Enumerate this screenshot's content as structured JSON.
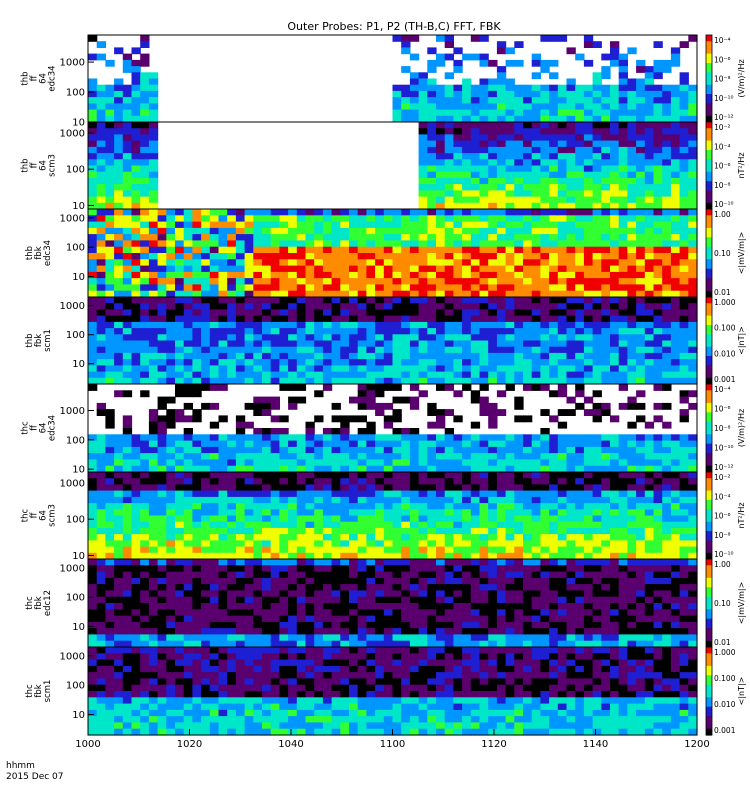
{
  "title": "Outer Probes: P1, P2 (TH-B,C) FFT, FBK",
  "time_axis": {
    "unit_label": "hhmm",
    "date_label": "2015 Dec 07",
    "ticks": [
      "1000",
      "1020",
      "1040",
      "1100",
      "1120",
      "1140",
      "1200"
    ]
  },
  "colors": {
    "colormap": [
      "#000000",
      "#5a006e",
      "#1e1ed2",
      "#0096ff",
      "#00e6c8",
      "#32ff32",
      "#f0ff00",
      "#ff8c00",
      "#f00000"
    ]
  },
  "chart_data": [
    {
      "type": "heatmap",
      "ylabel": [
        "thb",
        "ff",
        "64",
        "edc34"
      ],
      "y_ticks": [
        "10",
        "100",
        "1000"
      ],
      "y_range_hz": [
        10,
        8000
      ],
      "y_scale": "log",
      "colorbar": {
        "ticks": [
          "10⁻⁴",
          "10⁻⁶",
          "10⁻⁸",
          "10⁻¹⁰",
          "10⁻¹²"
        ],
        "label": "(V/m)²/Hz"
      },
      "data_gaps_hhmm": [
        [
          "1014",
          "1100"
        ]
      ]
    },
    {
      "type": "heatmap",
      "ylabel": [
        "thb",
        "ff",
        "64",
        "scm3"
      ],
      "y_ticks": [
        "10",
        "100",
        "1000"
      ],
      "y_range_hz": [
        8,
        2000
      ],
      "y_scale": "log",
      "colorbar": {
        "ticks": [
          "10⁻²",
          "10⁻⁴",
          "10⁻⁶",
          "10⁻⁸",
          "10⁻¹⁰"
        ],
        "label": "nT²/Hz"
      },
      "data_gaps_hhmm": [
        [
          "1014",
          "1106"
        ]
      ]
    },
    {
      "type": "heatmap",
      "ylabel": [
        "thb",
        "fbk",
        "edc34"
      ],
      "y_ticks": [
        "10",
        "100",
        "1000"
      ],
      "y_range_hz": [
        2,
        2000
      ],
      "y_scale": "log",
      "colorbar": {
        "ticks": [
          "1.00",
          "0.10",
          "0.01"
        ],
        "label": "<|mV/m|>"
      }
    },
    {
      "type": "heatmap",
      "ylabel": [
        "thb",
        "fbk",
        "scm1"
      ],
      "y_ticks": [
        "10",
        "100",
        "1000"
      ],
      "y_range_hz": [
        2,
        2000
      ],
      "y_scale": "log",
      "colorbar": {
        "ticks": [
          "1.000",
          "0.100",
          "0.010",
          "0.001"
        ],
        "label": "<|nT|>"
      }
    },
    {
      "type": "heatmap",
      "ylabel": [
        "thc",
        "ff",
        "64",
        "edc34"
      ],
      "y_ticks": [
        "10",
        "100",
        "1000"
      ],
      "y_range_hz": [
        8,
        8000
      ],
      "y_scale": "log",
      "colorbar": {
        "ticks": [
          "10⁻⁴",
          "10⁻⁶",
          "10⁻⁸",
          "10⁻¹⁰",
          "10⁻¹²"
        ],
        "label": "(V/m)²/Hz"
      }
    },
    {
      "type": "heatmap",
      "ylabel": [
        "thc",
        "ff",
        "64",
        "scm3"
      ],
      "y_ticks": [
        "10",
        "100",
        "1000"
      ],
      "y_range_hz": [
        8,
        2000
      ],
      "y_scale": "log",
      "colorbar": {
        "ticks": [
          "10⁻²",
          "10⁻⁴",
          "10⁻⁶",
          "10⁻⁸",
          "10⁻¹⁰"
        ],
        "label": "nT²/Hz"
      }
    },
    {
      "type": "heatmap",
      "ylabel": [
        "thc",
        "fbk",
        "edc12"
      ],
      "y_ticks": [
        "10",
        "100",
        "1000"
      ],
      "y_range_hz": [
        2,
        2000
      ],
      "y_scale": "log",
      "colorbar": {
        "ticks": [
          "1.00",
          "0.10",
          "0.01"
        ],
        "label": "<|mV/m|>"
      }
    },
    {
      "type": "heatmap",
      "ylabel": [
        "thc",
        "fbk",
        "scm1"
      ],
      "y_ticks": [
        "10",
        "100",
        "1000"
      ],
      "y_range_hz": [
        2,
        2000
      ],
      "y_scale": "log",
      "colorbar": {
        "ticks": [
          "1.000",
          "0.100",
          "0.010",
          "0.001"
        ],
        "label": "<|nT|>"
      }
    }
  ]
}
